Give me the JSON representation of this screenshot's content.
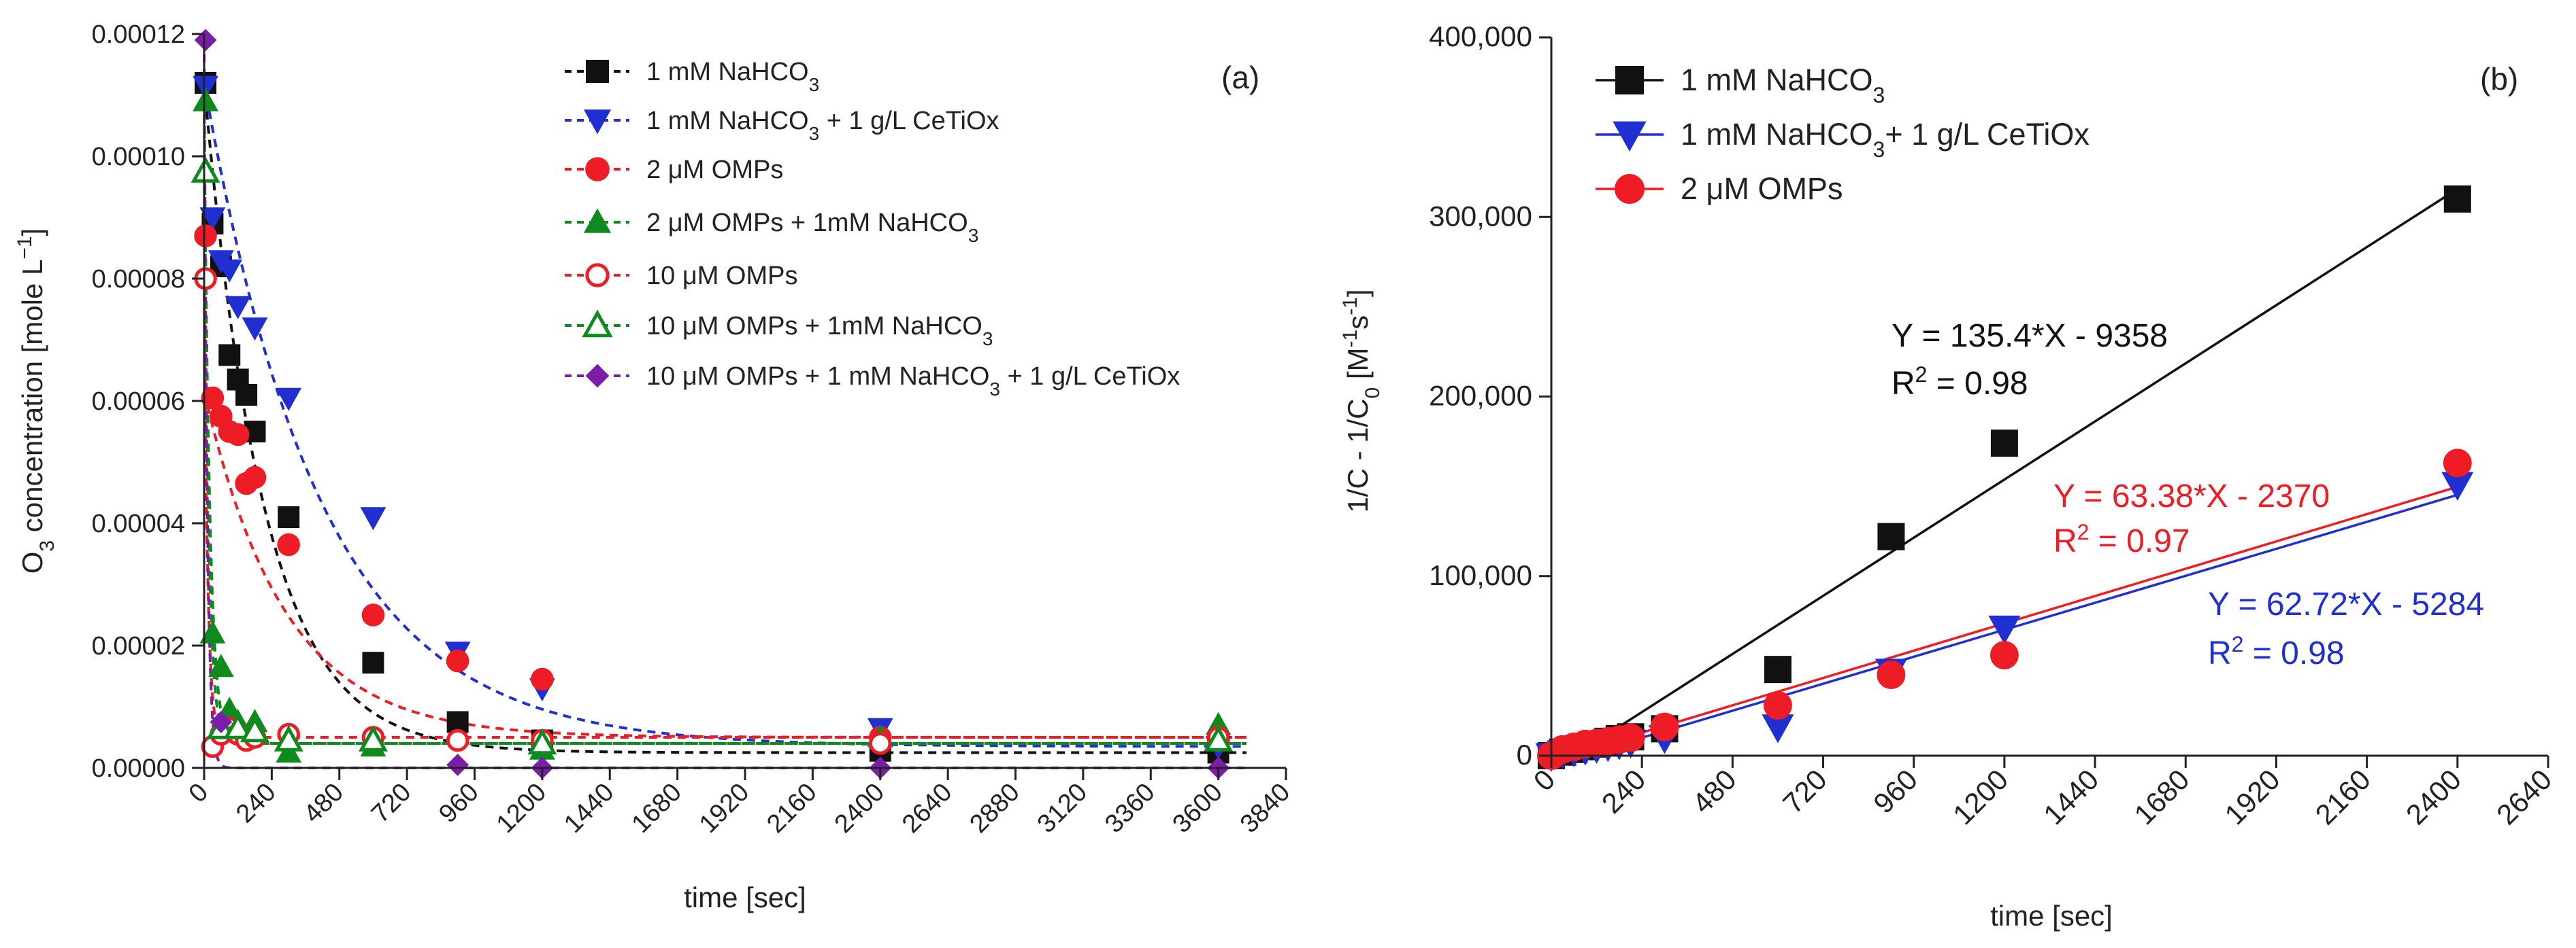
{
  "chart_data": [
    {
      "type": "scatter",
      "panel_label": "(a)",
      "xlabel": "time [sec]",
      "ylabel_pre": "O",
      "ylabel_sub": "3",
      "ylabel_mid": " concentration [mole L",
      "ylabel_sup": "−1",
      "ylabel_post": "]",
      "xlim": [
        0,
        3840
      ],
      "ylim": [
        0,
        0.00012
      ],
      "xticks": [
        "0",
        "240",
        "480",
        "720",
        "960",
        "1200",
        "1440",
        "1680",
        "1920",
        "2160",
        "2400",
        "2640",
        "2880",
        "3120",
        "3360",
        "3600",
        "3840"
      ],
      "yticks": [
        "0.00000",
        "0.00002",
        "0.00004",
        "0.00006",
        "0.00008",
        "0.00010",
        "0.00012"
      ],
      "series": [
        {
          "name_pre": "1 mM NaHCO",
          "name_sub": "3",
          "name_post": "",
          "color": "#111111",
          "marker": "square",
          "fill": true,
          "fit": {
            "y0": 0.000112,
            "plateau": 2.5e-06,
            "k": 0.0047
          },
          "points": [
            [
              5,
              0.000112
            ],
            [
              30,
              8.9e-05
            ],
            [
              60,
              8.2e-05
            ],
            [
              90,
              6.75e-05
            ],
            [
              120,
              6.35e-05
            ],
            [
              150,
              6.1e-05
            ],
            [
              180,
              5.5e-05
            ],
            [
              300,
              4.1e-05
            ],
            [
              600,
              1.72e-05
            ],
            [
              900,
              7.5e-06
            ],
            [
              1200,
              4.5e-06
            ],
            [
              2400,
              2.8e-06
            ],
            [
              3600,
              2.5e-06
            ]
          ]
        },
        {
          "name_pre": "1 mM NaHCO",
          "name_sub": "3",
          "name_post": " + 1 g/L CeTiOx",
          "color": "#1f2fd0",
          "marker": "triangle-down",
          "fill": true,
          "fit": {
            "y0": 0.000112,
            "plateau": 3.5e-06,
            "k": 0.0024
          },
          "points": [
            [
              5,
              0.0001115
            ],
            [
              30,
              9e-05
            ],
            [
              60,
              8.3e-05
            ],
            [
              90,
              8.15e-05
            ],
            [
              120,
              7.55e-05
            ],
            [
              180,
              7.2e-05
            ],
            [
              300,
              6.05e-05
            ],
            [
              600,
              4.1e-05
            ],
            [
              900,
              1.9e-05
            ],
            [
              1200,
              1.3e-05
            ],
            [
              2400,
              6.5e-06
            ],
            [
              3600,
              3.5e-06
            ]
          ]
        },
        {
          "name_pre": "2 μM OMPs",
          "name_sub": "",
          "name_post": "",
          "color": "#ee1c24",
          "marker": "circle",
          "fill": true,
          "fit": {
            "y0": 6.15e-05,
            "plateau": 5e-06,
            "k": 0.0035
          },
          "points": [
            [
              5,
              8.7e-05
            ],
            [
              30,
              6.05e-05
            ],
            [
              60,
              5.75e-05
            ],
            [
              90,
              5.5e-05
            ],
            [
              120,
              5.45e-05
            ],
            [
              150,
              4.65e-05
            ],
            [
              180,
              4.75e-05
            ],
            [
              300,
              3.65e-05
            ],
            [
              600,
              2.5e-05
            ],
            [
              900,
              1.75e-05
            ],
            [
              1200,
              1.45e-05
            ],
            [
              2400,
              5e-06
            ],
            [
              3600,
              4.5e-06
            ]
          ]
        },
        {
          "name_pre": "2 μM OMPs + 1mM NaHCO",
          "name_sub": "3",
          "name_post": "",
          "color": "#0f8a1f",
          "marker": "triangle-up",
          "fill": true,
          "fit": {
            "y0": 0.000109,
            "plateau": 4e-06,
            "k": 0.05
          },
          "points": [
            [
              5,
              0.000109
            ],
            [
              30,
              2.2e-05
            ],
            [
              60,
              1.65e-05
            ],
            [
              90,
              9.5e-06
            ],
            [
              120,
              7.5e-06
            ],
            [
              180,
              7.5e-06
            ],
            [
              300,
              2.5e-06
            ],
            [
              600,
              3.5e-06
            ],
            [
              1200,
              3e-06
            ],
            [
              2400,
              5e-06
            ],
            [
              3600,
              7e-06
            ]
          ]
        },
        {
          "name_pre": "10 μM OMPs",
          "name_sub": "",
          "name_post": "",
          "color": "#ee1c24",
          "marker": "circle",
          "fill": false,
          "fit": {
            "y0": 8e-05,
            "plateau": 5e-06,
            "k": 0.08
          },
          "points": [
            [
              5,
              8e-05
            ],
            [
              30,
              3.5e-06
            ],
            [
              60,
              5.5e-06
            ],
            [
              90,
              6.5e-06
            ],
            [
              120,
              5.5e-06
            ],
            [
              150,
              4.5e-06
            ],
            [
              180,
              5e-06
            ],
            [
              300,
              5.5e-06
            ],
            [
              600,
              5e-06
            ],
            [
              900,
              4.5e-06
            ],
            [
              1200,
              4.5e-06
            ],
            [
              2400,
              4e-06
            ],
            [
              3600,
              5e-06
            ]
          ]
        },
        {
          "name_pre": "10 μM OMPs + 1mM NaHCO",
          "name_sub": "3",
          "name_post": "",
          "color": "#0f8a1f",
          "marker": "triangle-up",
          "fill": false,
          "fit": {
            "y0": 9.75e-05,
            "plateau": 4e-06,
            "k": 0.06
          },
          "points": [
            [
              5,
              9.75e-05
            ],
            [
              60,
              6.5e-06
            ],
            [
              120,
              6.5e-06
            ],
            [
              180,
              6e-06
            ],
            [
              300,
              4.5e-06
            ],
            [
              600,
              4.5e-06
            ],
            [
              1200,
              4e-06
            ],
            [
              3600,
              4.5e-06
            ]
          ]
        },
        {
          "name_pre": "10 μM OMPs + 1 mM NaHCO",
          "name_sub": "3",
          "name_post": " + 1 g/L CeTiOx",
          "color": "#7a1ea8",
          "marker": "diamond",
          "fill": true,
          "fit": {
            "y0": 0.000119,
            "plateau": 0.0,
            "k": 0.09
          },
          "points": [
            [
              5,
              0.000119
            ],
            [
              60,
              7.5e-06
            ],
            [
              900,
              5e-07
            ],
            [
              1200,
              0.0
            ],
            [
              2400,
              0.0
            ],
            [
              3600,
              0.0
            ]
          ]
        }
      ]
    },
    {
      "type": "scatter",
      "panel_label": "(b)",
      "xlabel": "time [sec]",
      "ylabel_pre": "1/C - 1/C",
      "ylabel_sub": "0",
      "ylabel_mid": " [M",
      "ylabel_sup": "-1",
      "ylabel_mid2": "s",
      "ylabel_sup2": "-1",
      "ylabel_post": "]",
      "xlim": [
        0,
        2640
      ],
      "ylim": [
        0,
        400000
      ],
      "xticks": [
        "0",
        "240",
        "480",
        "720",
        "960",
        "1200",
        "1440",
        "1680",
        "1920",
        "2160",
        "2400",
        "2640"
      ],
      "yticks": [
        "0",
        "100,000",
        "200,000",
        "300,000",
        "400,000"
      ],
      "series": [
        {
          "name_pre": "1 mM NaHCO",
          "name_sub": "3",
          "name_post": "",
          "color": "#111111",
          "marker": "square",
          "fill": true,
          "fit": {
            "slope": 135.4,
            "intercept": -9358,
            "x_from": 60,
            "x_to": 2400
          },
          "points": [
            [
              0,
              0
            ],
            [
              30,
              2000
            ],
            [
              60,
              3500
            ],
            [
              90,
              5000
            ],
            [
              120,
              6500
            ],
            [
              150,
              8000
            ],
            [
              180,
              9500
            ],
            [
              210,
              10500
            ],
            [
              300,
              15000
            ],
            [
              600,
              48000
            ],
            [
              900,
              122000
            ],
            [
              1200,
              174000
            ],
            [
              2400,
              310000
            ]
          ]
        },
        {
          "name_pre": "1 mM NaHCO",
          "name_sub": "3",
          "name_post": "+ 1 g/L CeTiOx",
          "color": "#1f2fd0",
          "marker": "triangle-down",
          "fill": true,
          "fit": {
            "slope": 62.72,
            "intercept": -5284,
            "x_from": 80,
            "x_to": 2400
          },
          "points": [
            [
              0,
              0
            ],
            [
              30,
              1500
            ],
            [
              60,
              2500
            ],
            [
              90,
              3500
            ],
            [
              120,
              4500
            ],
            [
              150,
              5500
            ],
            [
              180,
              6500
            ],
            [
              210,
              7500
            ],
            [
              300,
              10000
            ],
            [
              600,
              16000
            ],
            [
              900,
              47000
            ],
            [
              1200,
              71000
            ],
            [
              2400,
              151000
            ]
          ]
        },
        {
          "name_pre": "2 μM OMPs",
          "name_sub": "",
          "name_post": "",
          "color": "#ee1c24",
          "marker": "circle",
          "fill": true,
          "fit": {
            "slope": 63.38,
            "intercept": -2370,
            "x_from": 40,
            "x_to": 2400
          },
          "points": [
            [
              0,
              0
            ],
            [
              30,
              3500
            ],
            [
              60,
              5000
            ],
            [
              90,
              6500
            ],
            [
              120,
              7000
            ],
            [
              150,
              8000
            ],
            [
              180,
              9000
            ],
            [
              210,
              10000
            ],
            [
              300,
              16000
            ],
            [
              600,
              28000
            ],
            [
              900,
              45000
            ],
            [
              1200,
              56000
            ],
            [
              2400,
              163000
            ]
          ]
        }
      ],
      "annotations": [
        {
          "line1": "Y = 135.4*X - 9358",
          "r2_pre": "R",
          "r2_sup": "2",
          "r2_post": " = 0.98",
          "color": "#111111"
        },
        {
          "line1": "Y = 63.38*X - 2370",
          "r2_pre": "R",
          "r2_sup": "2",
          "r2_post": " = 0.97",
          "color": "#ee1c24"
        },
        {
          "line1": "Y = 62.72*X - 5284",
          "r2_pre": "R",
          "r2_sup": "2",
          "r2_post": " = 0.98",
          "color": "#1f2fd0"
        }
      ]
    }
  ]
}
